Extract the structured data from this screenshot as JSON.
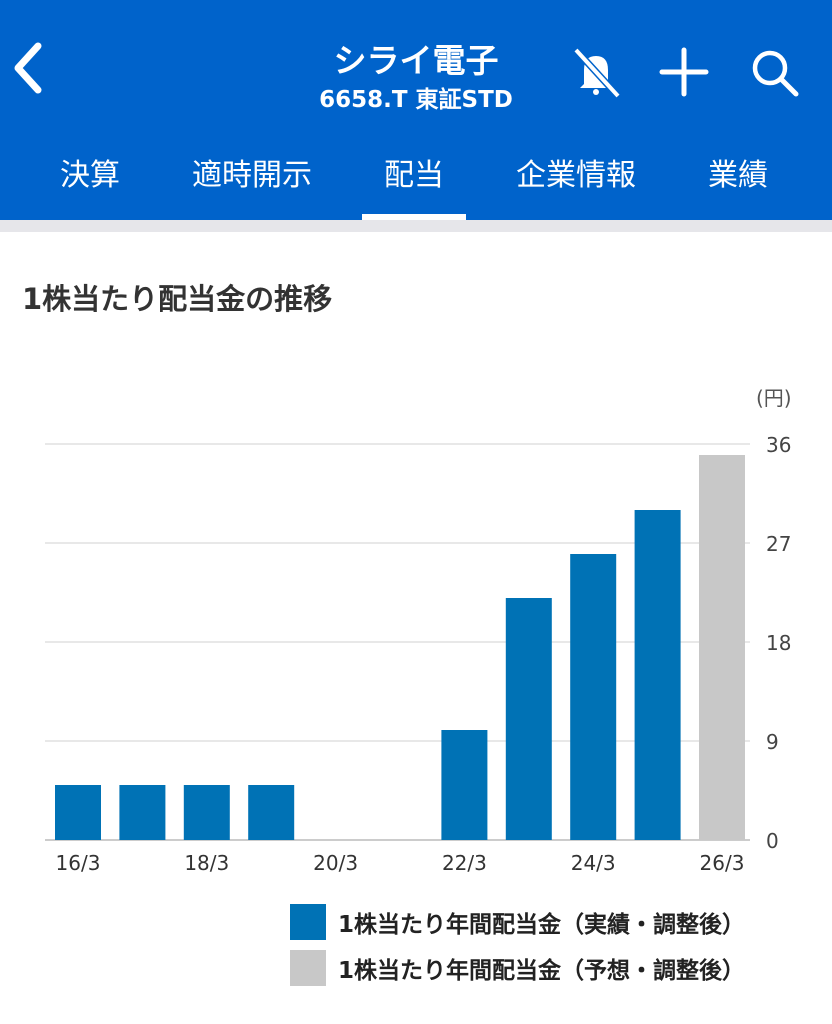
{
  "header": {
    "title": "シライ電子",
    "subtitle": "6658.T 東証STD"
  },
  "tabs": [
    {
      "label": "決算"
    },
    {
      "label": "適時開示"
    },
    {
      "label": "配当",
      "active": true
    },
    {
      "label": "企業情報"
    },
    {
      "label": "業績"
    }
  ],
  "section_title": "1株当たり配当金の推移",
  "colors": {
    "brand": "#0063CB",
    "actual": "#0072B5",
    "forecast": "#C8C8C8"
  },
  "chart_data": {
    "type": "bar",
    "title": "1株当たり配当金の推移",
    "ylabel": "(円)",
    "ylim": [
      0,
      36
    ],
    "yticks": [
      0,
      9,
      18,
      27,
      36
    ],
    "categories": [
      "16/3",
      "17/3",
      "18/3",
      "19/3",
      "20/3",
      "21/3",
      "22/3",
      "23/3",
      "24/3",
      "25/3",
      "26/3"
    ],
    "xtick_labels": [
      "16/3",
      "18/3",
      "20/3",
      "22/3",
      "24/3",
      "26/3"
    ],
    "series": [
      {
        "name": "1株当たり年間配当金（実績・調整後）",
        "values": [
          5,
          5,
          5,
          5,
          0,
          0,
          10,
          22,
          26,
          30,
          null
        ]
      },
      {
        "name": "1株当たり年間配当金（予想・調整後）",
        "values": [
          null,
          null,
          null,
          null,
          null,
          null,
          null,
          null,
          null,
          null,
          35
        ]
      }
    ],
    "grid": true,
    "legend": "bottom-right"
  }
}
